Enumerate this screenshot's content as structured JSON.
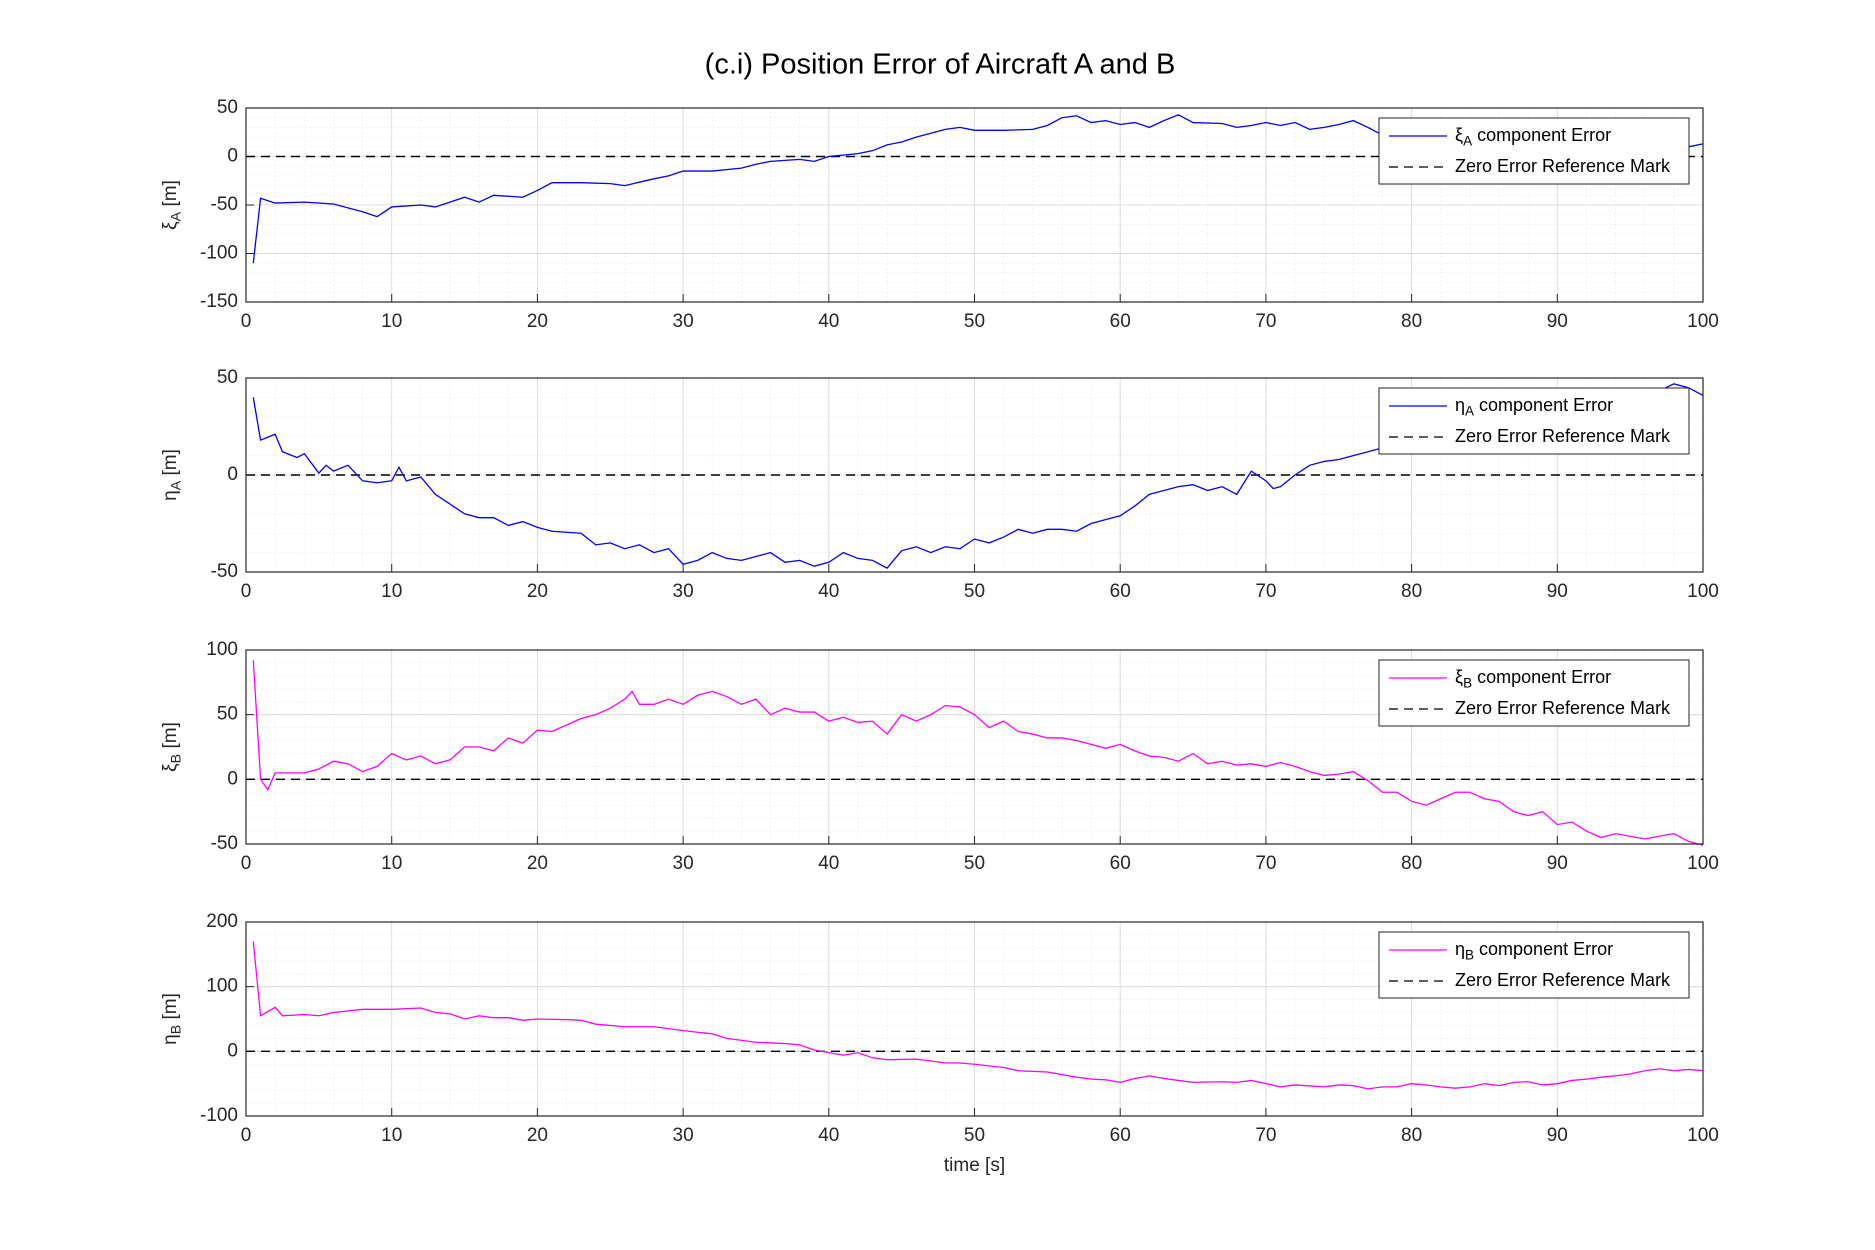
{
  "title": "(c.i) Position Error of Aircraft A and B",
  "chart_data": [
    {
      "type": "line",
      "ylabel": "ξA [m]",
      "xlim": [
        0,
        100
      ],
      "xticks": [
        0,
        10,
        20,
        30,
        40,
        50,
        60,
        70,
        80,
        90,
        100
      ],
      "ylim": [
        -150,
        50
      ],
      "yticks": [
        -150,
        -100,
        -50,
        0,
        50
      ],
      "grid": true,
      "minor_grid": true,
      "legend": "upper right",
      "x": [
        0.5,
        1,
        2,
        4,
        6,
        8,
        9,
        10,
        12,
        13,
        15,
        16,
        17,
        19,
        20,
        21,
        23,
        25,
        26,
        28,
        29,
        30,
        32,
        34,
        35,
        36,
        38,
        39,
        40,
        42,
        43,
        44,
        45,
        46,
        48,
        49,
        50,
        52,
        54,
        55,
        56,
        57,
        58,
        59,
        60,
        61,
        62,
        63,
        64,
        65,
        67,
        68,
        69,
        70,
        71,
        72,
        73,
        74,
        75,
        76,
        77,
        78,
        80,
        85,
        90,
        95,
        98,
        99,
        100
      ],
      "series": [
        {
          "name": "ξA component Error",
          "color": "#0000ff",
          "values": [
            -110,
            -43,
            -48,
            -47,
            -49,
            -57,
            -62,
            -52,
            -50,
            -52,
            -42,
            -47,
            -40,
            -42,
            -35,
            -27,
            -27,
            -28,
            -30,
            -23,
            -20,
            -15,
            -15,
            -12,
            -8,
            -5,
            -3,
            -5,
            0,
            3,
            6,
            12,
            15,
            20,
            28,
            30,
            27,
            27,
            28,
            32,
            40,
            42,
            35,
            37,
            33,
            35,
            30,
            37,
            43,
            35,
            34,
            30,
            32,
            35,
            32,
            35,
            28,
            30,
            33,
            37,
            30,
            22,
            20,
            20,
            18,
            18,
            15,
            10,
            13
          ]
        }
      ],
      "reference": {
        "name": "Zero Error Reference Mark",
        "value": 0,
        "color": "#000000",
        "style": "dashed"
      }
    },
    {
      "type": "line",
      "ylabel": "ηA [m]",
      "xlim": [
        0,
        100
      ],
      "xticks": [
        0,
        10,
        20,
        30,
        40,
        50,
        60,
        70,
        80,
        90,
        100
      ],
      "ylim": [
        -50,
        50
      ],
      "yticks": [
        -50,
        0,
        50
      ],
      "grid": true,
      "minor_grid": true,
      "legend": "upper right",
      "x": [
        0.5,
        1,
        2,
        2.5,
        3.5,
        4,
        5,
        5.5,
        6,
        7,
        8,
        9,
        10,
        10.5,
        11,
        12,
        13,
        14,
        15,
        16,
        17,
        18,
        19,
        20,
        21,
        23,
        24,
        25,
        26,
        27,
        28,
        29,
        30,
        31,
        32,
        33,
        34,
        35,
        36,
        37,
        38,
        39,
        40,
        41,
        42,
        43,
        44,
        45,
        46,
        47,
        48,
        49,
        50,
        51,
        52,
        53,
        54,
        55,
        56,
        57,
        58,
        59,
        60,
        61,
        62,
        63,
        64,
        65,
        66,
        67,
        68,
        69,
        70,
        70.5,
        71,
        72,
        73,
        74,
        75,
        76,
        77,
        78,
        85,
        90,
        95,
        98,
        99,
        100
      ],
      "series": [
        {
          "name": "ηA component Error",
          "color": "#0000ff",
          "values": [
            40,
            18,
            21,
            12,
            9,
            11,
            1,
            5,
            2,
            5,
            -3,
            -4,
            -3,
            4,
            -3,
            -1,
            -10,
            -15,
            -20,
            -22,
            -22,
            -26,
            -24,
            -27,
            -29,
            -30,
            -36,
            -35,
            -38,
            -36,
            -40,
            -38,
            -46,
            -44,
            -40,
            -43,
            -44,
            -42,
            -40,
            -45,
            -44,
            -47,
            -45,
            -40,
            -43,
            -44,
            -48,
            -39,
            -37,
            -40,
            -37,
            -38,
            -33,
            -35,
            -32,
            -28,
            -30,
            -28,
            -28,
            -29,
            -25,
            -23,
            -21,
            -16,
            -10,
            -8,
            -6,
            -5,
            -8,
            -6,
            -10,
            2,
            -3,
            -7,
            -6,
            0,
            5,
            7,
            8,
            10,
            12,
            14,
            20,
            28,
            36,
            47,
            45,
            41
          ]
        }
      ],
      "reference": {
        "name": "Zero Error Reference Mark",
        "value": 0,
        "color": "#000000",
        "style": "dashed"
      }
    },
    {
      "type": "line",
      "ylabel": "ξB [m]",
      "xlim": [
        0,
        100
      ],
      "xticks": [
        0,
        10,
        20,
        30,
        40,
        50,
        60,
        70,
        80,
        90,
        100
      ],
      "ylim": [
        -50,
        100
      ],
      "yticks": [
        -50,
        0,
        50,
        100
      ],
      "grid": true,
      "minor_grid": true,
      "legend": "upper right",
      "x": [
        0.5,
        1,
        1.5,
        2,
        3,
        4,
        5,
        6,
        7,
        8,
        9,
        10,
        11,
        12,
        13,
        14,
        15,
        16,
        17,
        18,
        19,
        20,
        21,
        22,
        23,
        24,
        25,
        26,
        26.5,
        27,
        28,
        29,
        30,
        31,
        32,
        33,
        34,
        35,
        36,
        37,
        38,
        39,
        40,
        41,
        42,
        43,
        44,
        45,
        46,
        47,
        48,
        49,
        50,
        51,
        52,
        53,
        54,
        55,
        56,
        57,
        58,
        59,
        60,
        61,
        62,
        63,
        64,
        65,
        66,
        67,
        68,
        69,
        70,
        71,
        72,
        73,
        74,
        75,
        76,
        77,
        78,
        79,
        80,
        81,
        82,
        83,
        84,
        85,
        86,
        87,
        88,
        89,
        90,
        91,
        92,
        93,
        94,
        95,
        96,
        97,
        98,
        99,
        100
      ],
      "series": [
        {
          "name": "ξB component Error",
          "color": "#ff00ff",
          "values": [
            92,
            0,
            -8,
            5,
            5,
            5,
            8,
            14,
            12,
            6,
            10,
            20,
            15,
            18,
            12,
            15,
            25,
            25,
            22,
            32,
            28,
            38,
            37,
            42,
            47,
            50,
            55,
            62,
            68,
            58,
            58,
            62,
            58,
            65,
            68,
            64,
            58,
            62,
            50,
            55,
            52,
            52,
            45,
            48,
            44,
            45,
            35,
            50,
            45,
            50,
            57,
            56,
            50,
            40,
            45,
            37,
            35,
            32,
            32,
            30,
            27,
            24,
            27,
            22,
            18,
            17,
            14,
            20,
            12,
            14,
            11,
            12,
            10,
            13,
            10,
            6,
            3,
            4,
            6,
            -1,
            -10,
            -10,
            -17,
            -20,
            -15,
            -10,
            -10,
            -15,
            -17,
            -25,
            -28,
            -25,
            -35,
            -33,
            -40,
            -45,
            -42,
            -44,
            -46,
            -44,
            -42,
            -48,
            -51
          ]
        }
      ],
      "reference": {
        "name": "Zero Error Reference Mark",
        "value": 0,
        "color": "#000000",
        "style": "dashed"
      }
    },
    {
      "type": "line",
      "ylabel": "ηB [m]",
      "xlabel": "time [s]",
      "xlim": [
        0,
        100
      ],
      "xticks": [
        0,
        10,
        20,
        30,
        40,
        50,
        60,
        70,
        80,
        90,
        100
      ],
      "ylim": [
        -100,
        200
      ],
      "yticks": [
        -100,
        0,
        100,
        200
      ],
      "grid": true,
      "minor_grid": true,
      "legend": "upper right",
      "x": [
        0.5,
        1,
        2,
        2.5,
        4,
        5,
        6,
        8,
        10,
        11,
        12,
        13,
        14,
        15,
        16,
        17,
        18,
        19,
        20,
        22,
        23,
        24,
        26,
        28,
        30,
        32,
        33,
        35,
        37,
        38,
        39,
        40,
        41,
        42,
        43,
        44,
        46,
        47,
        48,
        49,
        50,
        52,
        53,
        55,
        57,
        58,
        59,
        60,
        61,
        62,
        63,
        64,
        65,
        67,
        68,
        69,
        70,
        71,
        72,
        74,
        75,
        76,
        77,
        78,
        79,
        80,
        81,
        82,
        83,
        84,
        85,
        86,
        87,
        88,
        89,
        90,
        91,
        92,
        93,
        94,
        95,
        96,
        97,
        98,
        99,
        100
      ],
      "series": [
        {
          "name": "ηB component Error",
          "color": "#ff00ff",
          "values": [
            170,
            55,
            68,
            55,
            57,
            55,
            60,
            65,
            65,
            66,
            67,
            60,
            58,
            50,
            55,
            52,
            52,
            48,
            50,
            49,
            48,
            42,
            38,
            38,
            32,
            27,
            20,
            14,
            12,
            10,
            2,
            -2,
            -6,
            -2,
            -10,
            -13,
            -12,
            -15,
            -18,
            -18,
            -20,
            -25,
            -30,
            -32,
            -40,
            -43,
            -44,
            -48,
            -42,
            -38,
            -42,
            -45,
            -48,
            -47,
            -48,
            -45,
            -50,
            -55,
            -52,
            -55,
            -52,
            -53,
            -58,
            -55,
            -55,
            -50,
            -52,
            -55,
            -57,
            -55,
            -50,
            -53,
            -48,
            -47,
            -52,
            -50,
            -45,
            -43,
            -40,
            -38,
            -35,
            -30,
            -27,
            -30,
            -28,
            -30
          ]
        }
      ],
      "reference": {
        "name": "Zero Error Reference Mark",
        "value": 0,
        "color": "#000000",
        "style": "dashed"
      }
    }
  ]
}
